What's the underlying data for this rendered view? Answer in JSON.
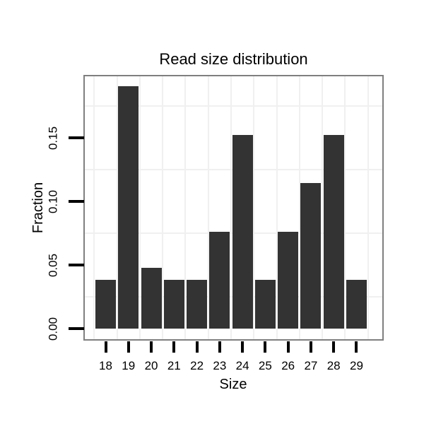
{
  "figure": {
    "background": "#ffffff"
  },
  "style": {
    "bar_color": "#333333",
    "panel_border_color": "#7f7f7f",
    "gridline_color": "#f0f0f0",
    "tick_color": "#000000",
    "text_color": "#000000"
  },
  "chart_data": {
    "type": "bar",
    "title": "Read size distribution",
    "xlabel": "Size",
    "ylabel": "Fraction",
    "categories": [
      "18",
      "19",
      "20",
      "21",
      "22",
      "23",
      "24",
      "25",
      "26",
      "27",
      "28",
      "29"
    ],
    "values": [
      0.0381,
      0.1905,
      0.0476,
      0.0381,
      0.0381,
      0.0762,
      0.1524,
      0.0381,
      0.0762,
      0.1143,
      0.1524,
      0.0381
    ],
    "y_tick_labels": [
      "0.00",
      "0.05",
      "0.10",
      "0.15"
    ],
    "y_tick_values": [
      0,
      0.05,
      0.1,
      0.15
    ],
    "y_minor_gridlines": [
      0.025,
      0.075,
      0.125,
      0.175
    ],
    "ylim": [
      0,
      0.198
    ],
    "grid": "light minor gridlines only (horizontal between ticks, vertical at category boundaries)",
    "legend": "none",
    "bar_orientation": "vertical"
  }
}
